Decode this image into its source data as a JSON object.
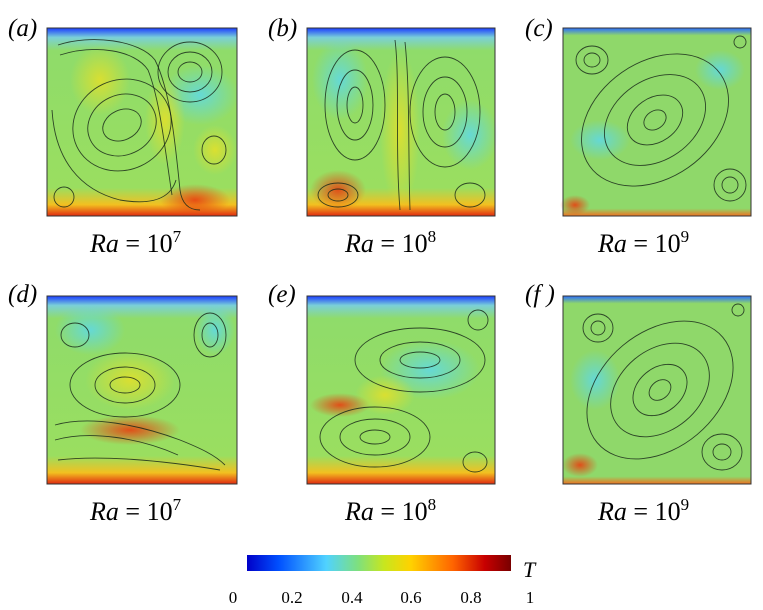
{
  "panels": [
    {
      "label": "(a)",
      "ra_prefix": "Ra",
      "equals": " = ",
      "ra_base": "10",
      "ra_exp": "7"
    },
    {
      "label": "(b)",
      "ra_prefix": "Ra",
      "equals": " = ",
      "ra_base": "10",
      "ra_exp": "8"
    },
    {
      "label": "(c)",
      "ra_prefix": "Ra",
      "equals": " = ",
      "ra_base": "10",
      "ra_exp": "9"
    },
    {
      "label": "(d)",
      "ra_prefix": "Ra",
      "equals": " = ",
      "ra_base": "10",
      "ra_exp": "7"
    },
    {
      "label": "(e)",
      "ra_prefix": "Ra",
      "equals": " = ",
      "ra_base": "10",
      "ra_exp": "8"
    },
    {
      "label": "(f )",
      "ra_prefix": "Ra",
      "equals": " = ",
      "ra_base": "10",
      "ra_exp": "9"
    }
  ],
  "colorbar": {
    "title": "T",
    "ticks": [
      "0",
      "0.2",
      "0.4",
      "0.6",
      "0.8",
      "1"
    ],
    "tick_values": [
      0,
      0.2,
      0.4,
      0.6,
      0.8,
      1
    ],
    "range": [
      0,
      1
    ],
    "colormap": [
      "#0000c8",
      "#0050ff",
      "#50d2ff",
      "#7ee07e",
      "#c8e61e",
      "#ffd200",
      "#ff6400",
      "#c80000",
      "#780000"
    ]
  },
  "colors": {
    "cold": "#1a3cff",
    "cool": "#5ad8f0",
    "mid": "#8be05a",
    "warm": "#f0e020",
    "hot": "#f04010"
  }
}
